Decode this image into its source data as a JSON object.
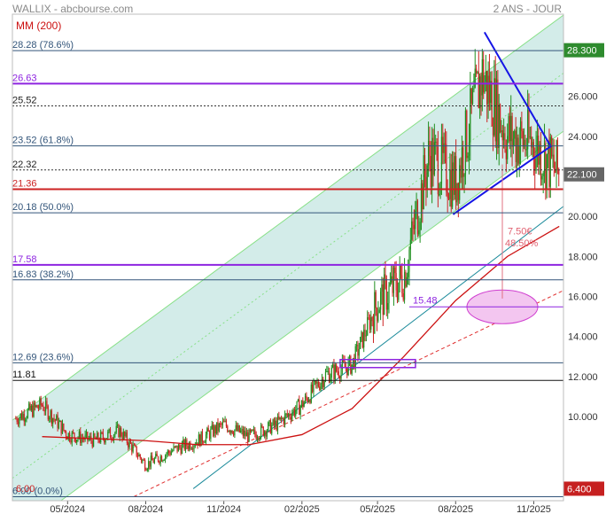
{
  "header": {
    "title": "WALLIX - abcbourse.com",
    "period": "2 ANS - JOUR",
    "indicator": "MM (200)"
  },
  "colors": {
    "up": "#1f8f1f",
    "down": "#cc2222",
    "ma": "#cc1111",
    "channel_fill": "#d3ece9",
    "channel_border": "#88e088",
    "fib": "#33557a",
    "purple": "#8e24e0",
    "triangle": "#1515e6",
    "target_zone": "#f3c6f0",
    "last_price_bg": "#666666",
    "resistance_bg": "#2e8b2e",
    "support_bg": "#c62020"
  },
  "chart_data": {
    "type": "candlestick",
    "ylim": [
      5.8,
      30.1
    ],
    "yticks": [
      "10.000",
      "12.000",
      "14.000",
      "16.000",
      "18.000",
      "20.000",
      "22.000",
      "24.000",
      "26.000"
    ],
    "ytick_values": [
      10,
      12,
      14,
      16,
      18,
      20,
      22,
      24,
      26
    ],
    "xticks": [
      "05/2024",
      "08/2024",
      "11/2024",
      "02/2025",
      "05/2025",
      "08/2025",
      "11/2025"
    ],
    "price_badges": [
      {
        "label": "28.300",
        "value": 28.3,
        "kind": "resistance"
      },
      {
        "label": "22.100",
        "value": 22.1,
        "kind": "last"
      },
      {
        "label": "6.400",
        "value": 6.4,
        "kind": "support"
      }
    ],
    "levels": [
      {
        "label": "28.28  (78.6%)",
        "value": 28.28,
        "kind": "fib"
      },
      {
        "label": "26.63",
        "value": 26.63,
        "kind": "purple"
      },
      {
        "label": "25.52",
        "value": 25.52,
        "kind": "dotted"
      },
      {
        "label": "23.52  (61.8%)",
        "value": 23.52,
        "kind": "fib"
      },
      {
        "label": "22.32",
        "value": 22.32,
        "kind": "dotted"
      },
      {
        "label": "21.36",
        "value": 21.36,
        "kind": "red"
      },
      {
        "label": "20.18  (50.0%)",
        "value": 20.18,
        "kind": "fib"
      },
      {
        "label": "17.58",
        "value": 17.58,
        "kind": "purple"
      },
      {
        "label": "16.83  (38.2%)",
        "value": 16.83,
        "kind": "fib"
      },
      {
        "label": "12.69  (23.6%)",
        "value": 12.69,
        "kind": "fib"
      },
      {
        "label": "11.81",
        "value": 11.81,
        "kind": "black"
      },
      {
        "label": "6.00  (0.0%)",
        "value": 6.0,
        "kind": "fib"
      }
    ],
    "red_low_label": "6.00",
    "target": {
      "label": "15.48",
      "value": 15.48
    },
    "annotation": {
      "line1": "7.50€",
      "line2": "48.50%"
    },
    "series": [
      {
        "name": "MM (200)",
        "x": [
          "2024-04",
          "2024-06",
          "2024-08",
          "2024-10",
          "2024-12",
          "2025-02",
          "2025-04",
          "2025-06",
          "2025-08",
          "2025-10",
          "2025-12"
        ],
        "values": [
          9.0,
          8.9,
          8.8,
          8.6,
          8.6,
          9.1,
          10.4,
          13.0,
          15.8,
          18.0,
          19.5
        ]
      }
    ],
    "price_path": {
      "x": [
        "2024-03",
        "2024-04",
        "2024-05",
        "2024-06",
        "2024-07",
        "2024-08",
        "2024-09",
        "2024-10",
        "2024-11",
        "2024-12",
        "2025-01",
        "2025-02",
        "2025-03",
        "2025-04",
        "2025-05",
        "2025-06",
        "2025-07",
        "2025-08",
        "2025-09",
        "2025-10",
        "2025-11",
        "2025-12"
      ],
      "values": [
        9.9,
        10.6,
        9.1,
        8.8,
        9.3,
        7.6,
        8.3,
        8.8,
        9.6,
        9.0,
        9.6,
        10.6,
        12.1,
        12.6,
        15.7,
        17.0,
        23.1,
        21.7,
        27.1,
        24.0,
        23.6,
        22.1
      ]
    }
  }
}
